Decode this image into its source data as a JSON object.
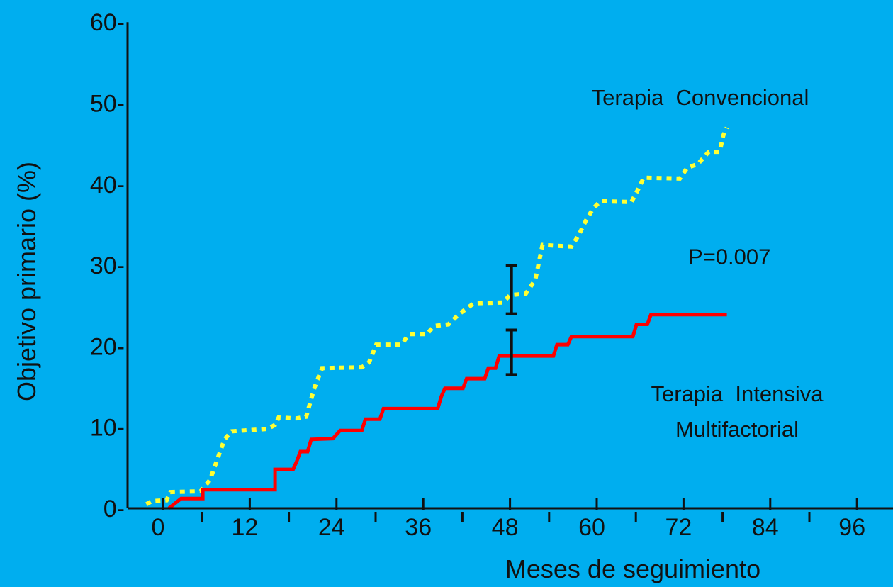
{
  "colors": {
    "background": "#00AEEF",
    "axis": "#111111",
    "conventional": "#FFFF33",
    "intensive": "#FF0000"
  },
  "chart_data": {
    "type": "line",
    "title": "",
    "xlabel": "Meses de seguimiento",
    "ylabel": "Objetivo primario (%)",
    "xlim": [
      -4,
      100
    ],
    "ylim": [
      0,
      60
    ],
    "x_ticks": [
      0,
      12,
      24,
      36,
      48,
      60,
      72,
      84,
      96
    ],
    "x_tick_labels": [
      "0",
      "12",
      "24",
      "36",
      "48",
      "60",
      "72",
      "84",
      "96"
    ],
    "x_minor_ticks": [
      6,
      18,
      30,
      42,
      54,
      66,
      78,
      90
    ],
    "y_ticks": [
      0,
      10,
      20,
      30,
      40,
      50,
      60
    ],
    "y_tick_labels": [
      "0-",
      "10-",
      "20-",
      "30-",
      "40-",
      "50-",
      "60-"
    ],
    "grid": false,
    "legend": "none",
    "series": [
      {
        "name": "Terapia Convencional",
        "label_lines": [
          "Terapia  Convencional"
        ],
        "style": "dotted",
        "points": [
          [
            -2.3,
            0.5
          ],
          [
            -1.5,
            0.9
          ],
          [
            0.5,
            1.0
          ],
          [
            1,
            2.0
          ],
          [
            5.2,
            2.1
          ],
          [
            6.5,
            3.5
          ],
          [
            7.5,
            6
          ],
          [
            8.5,
            8.5
          ],
          [
            9.5,
            9.5
          ],
          [
            14.5,
            9.8
          ],
          [
            15.5,
            10.3
          ],
          [
            16,
            11.2
          ],
          [
            18.5,
            11.1
          ],
          [
            19.8,
            11.3
          ],
          [
            20.5,
            13.5
          ],
          [
            21,
            15.0
          ],
          [
            22,
            17.3
          ],
          [
            27.5,
            17.4
          ],
          [
            28.5,
            18.0
          ],
          [
            29.5,
            20.2
          ],
          [
            33,
            20.2
          ],
          [
            34,
            21.5
          ],
          [
            36.5,
            21.5
          ],
          [
            37.5,
            22.5
          ],
          [
            39.5,
            22.7
          ],
          [
            41,
            24.0
          ],
          [
            43,
            25.3
          ],
          [
            47,
            25.4
          ],
          [
            48,
            26.3
          ],
          [
            50.2,
            26.5
          ],
          [
            51.5,
            28.2
          ],
          [
            52.5,
            32.5
          ],
          [
            56.5,
            32.3
          ],
          [
            57.5,
            33.7
          ],
          [
            58.5,
            35.5
          ],
          [
            59.5,
            37.0
          ],
          [
            60.5,
            37.9
          ],
          [
            64.8,
            37.8
          ],
          [
            65.8,
            39.5
          ],
          [
            66.5,
            40.8
          ],
          [
            71.5,
            40.7
          ],
          [
            72.5,
            42.0
          ],
          [
            74,
            42.5
          ],
          [
            75.5,
            44.0
          ],
          [
            77,
            44.0
          ],
          [
            77.5,
            46.0
          ],
          [
            78,
            47.0
          ]
        ]
      },
      {
        "name": "Terapia Intensiva Multifactorial",
        "label_lines": [
          "Terapia  Intensiva",
          "Multifactorial"
        ],
        "style": "solid",
        "points": [
          [
            0.8,
            0.0
          ],
          [
            1.5,
            0.5
          ],
          [
            2.5,
            1.2
          ],
          [
            5.5,
            1.2
          ],
          [
            5.5,
            2.3
          ],
          [
            15.5,
            2.3
          ],
          [
            15.5,
            4.8
          ],
          [
            18,
            4.8
          ],
          [
            18.5,
            5.8
          ],
          [
            19,
            7.0
          ],
          [
            20,
            7.0
          ],
          [
            20.5,
            8.5
          ],
          [
            23.5,
            8.6
          ],
          [
            24.5,
            9.6
          ],
          [
            27.5,
            9.6
          ],
          [
            28,
            11.0
          ],
          [
            30,
            11.0
          ],
          [
            30.5,
            12.3
          ],
          [
            38,
            12.3
          ],
          [
            38.5,
            13.8
          ],
          [
            39,
            14.8
          ],
          [
            41.5,
            14.8
          ],
          [
            42,
            16.0
          ],
          [
            44.5,
            16.0
          ],
          [
            45,
            17.3
          ],
          [
            46,
            17.3
          ],
          [
            46.5,
            18.8
          ],
          [
            54,
            18.8
          ],
          [
            54.5,
            20.2
          ],
          [
            56,
            20.2
          ],
          [
            56.5,
            21.2
          ],
          [
            65,
            21.2
          ],
          [
            65.5,
            22.7
          ],
          [
            67,
            22.7
          ],
          [
            67.5,
            23.9
          ],
          [
            78,
            23.9
          ]
        ]
      }
    ],
    "annotations": [
      {
        "text": "P=0.007",
        "x": 71,
        "y": 31
      }
    ],
    "error_bars": [
      {
        "x": 48.5,
        "low": 24.0,
        "high": 30.0
      },
      {
        "x": 48.5,
        "low": 16.5,
        "high": 22.0
      }
    ]
  }
}
